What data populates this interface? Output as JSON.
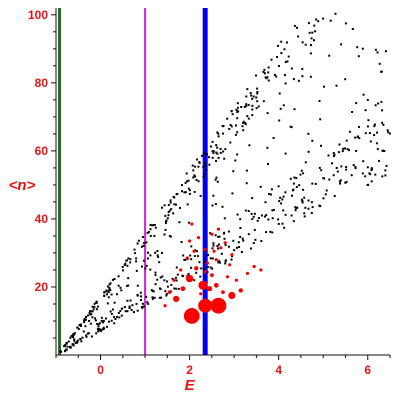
{
  "chart_data": {
    "type": "scatter",
    "title": "",
    "xlabel": "E",
    "ylabel": "<n>",
    "xlim": [
      -1,
      6.5
    ],
    "ylim": [
      0,
      102
    ],
    "xticks": [
      0,
      2,
      4,
      6
    ],
    "yticks": [
      20,
      40,
      60,
      80,
      100
    ],
    "xtick_labels": [
      "0",
      "2",
      "4",
      "6"
    ],
    "ytick_labels": [
      "20",
      "40",
      "60",
      "80",
      "100"
    ],
    "grid": false,
    "colors": {
      "axis_text": "#e8120e",
      "tick": "#111111",
      "dots": "#000000",
      "highlight": "#ff0000",
      "green_line": "#1f6b1f",
      "magenta_line": "#dd22dd",
      "blue_line": "#0000ee"
    },
    "vertical_lines": [
      {
        "name": "green",
        "x": -0.92,
        "color": "#1f6b1f"
      },
      {
        "name": "magenta",
        "x": 1.0,
        "color": "#dd22dd"
      },
      {
        "name": "blue",
        "x": 2.35,
        "color": "#0000ee"
      }
    ],
    "black_band": {
      "x_start": -1.0,
      "x_end": 6.5,
      "lower_start": 0.0,
      "lower_slope": 7.2,
      "upper_start": 0.0,
      "upper_slope": 18.5,
      "inner_lower_start": 4.0,
      "inner_lower_slope": 9.0,
      "inner_upper_start": 5.0,
      "inner_upper_slope": 11.5,
      "count": 820
    },
    "red_points": [
      {
        "x": 2.05,
        "y": 11.5,
        "size": 3.3
      },
      {
        "x": 2.35,
        "y": 14.5,
        "size": 2.9
      },
      {
        "x": 2.65,
        "y": 14.5,
        "size": 3.3
      },
      {
        "x": 2.3,
        "y": 20.5,
        "size": 1.9
      },
      {
        "x": 2.0,
        "y": 22.5,
        "size": 1.6
      },
      {
        "x": 2.95,
        "y": 17.5,
        "size": 1.5
      },
      {
        "x": 1.7,
        "y": 16.5,
        "size": 1.3
      },
      {
        "x": 2.45,
        "y": 19.5,
        "size": 1.1
      },
      {
        "x": 1.85,
        "y": 19.5,
        "size": 1.0
      },
      {
        "x": 2.6,
        "y": 20.5,
        "size": 1.0
      },
      {
        "x": 3.15,
        "y": 19.0,
        "size": 0.9
      },
      {
        "x": 2.15,
        "y": 25.5,
        "size": 0.9
      },
      {
        "x": 1.55,
        "y": 18.5,
        "size": 0.8
      },
      {
        "x": 2.5,
        "y": 23.5,
        "size": 0.8
      },
      {
        "x": 2.75,
        "y": 18.5,
        "size": 0.8
      },
      {
        "x": 2.35,
        "y": 31.0,
        "size": 0.7
      },
      {
        "x": 1.95,
        "y": 28.5,
        "size": 0.6
      },
      {
        "x": 2.55,
        "y": 30.5,
        "size": 0.6
      },
      {
        "x": 2.2,
        "y": 34.5,
        "size": 0.6
      },
      {
        "x": 2.05,
        "y": 38.5,
        "size": 0.6
      },
      {
        "x": 2.7,
        "y": 31.5,
        "size": 0.6
      },
      {
        "x": 2.5,
        "y": 35.5,
        "size": 0.5
      },
      {
        "x": 1.8,
        "y": 25.0,
        "size": 0.5
      },
      {
        "x": 2.9,
        "y": 26.5,
        "size": 0.5
      },
      {
        "x": 2.8,
        "y": 33.0,
        "size": 0.5
      },
      {
        "x": 3.3,
        "y": 24.0,
        "size": 0.5
      },
      {
        "x": 2.4,
        "y": 27.0,
        "size": 0.5
      },
      {
        "x": 1.65,
        "y": 22.0,
        "size": 0.5
      },
      {
        "x": 2.6,
        "y": 28.0,
        "size": 0.5
      },
      {
        "x": 3.05,
        "y": 22.0,
        "size": 0.5
      },
      {
        "x": 2.25,
        "y": 18.0,
        "size": 0.5
      },
      {
        "x": 2.85,
        "y": 23.0,
        "size": 0.5
      },
      {
        "x": 1.45,
        "y": 14.5,
        "size": 0.5
      },
      {
        "x": 2.1,
        "y": 30.5,
        "size": 0.5
      },
      {
        "x": 3.45,
        "y": 26.0,
        "size": 0.5
      },
      {
        "x": 2.65,
        "y": 37.0,
        "size": 0.5
      },
      {
        "x": 2.0,
        "y": 33.5,
        "size": 0.5
      },
      {
        "x": 3.6,
        "y": 25.0,
        "size": 0.5
      },
      {
        "x": 2.35,
        "y": 24.5,
        "size": 0.5
      },
      {
        "x": 2.95,
        "y": 29.5,
        "size": 0.5
      }
    ]
  }
}
